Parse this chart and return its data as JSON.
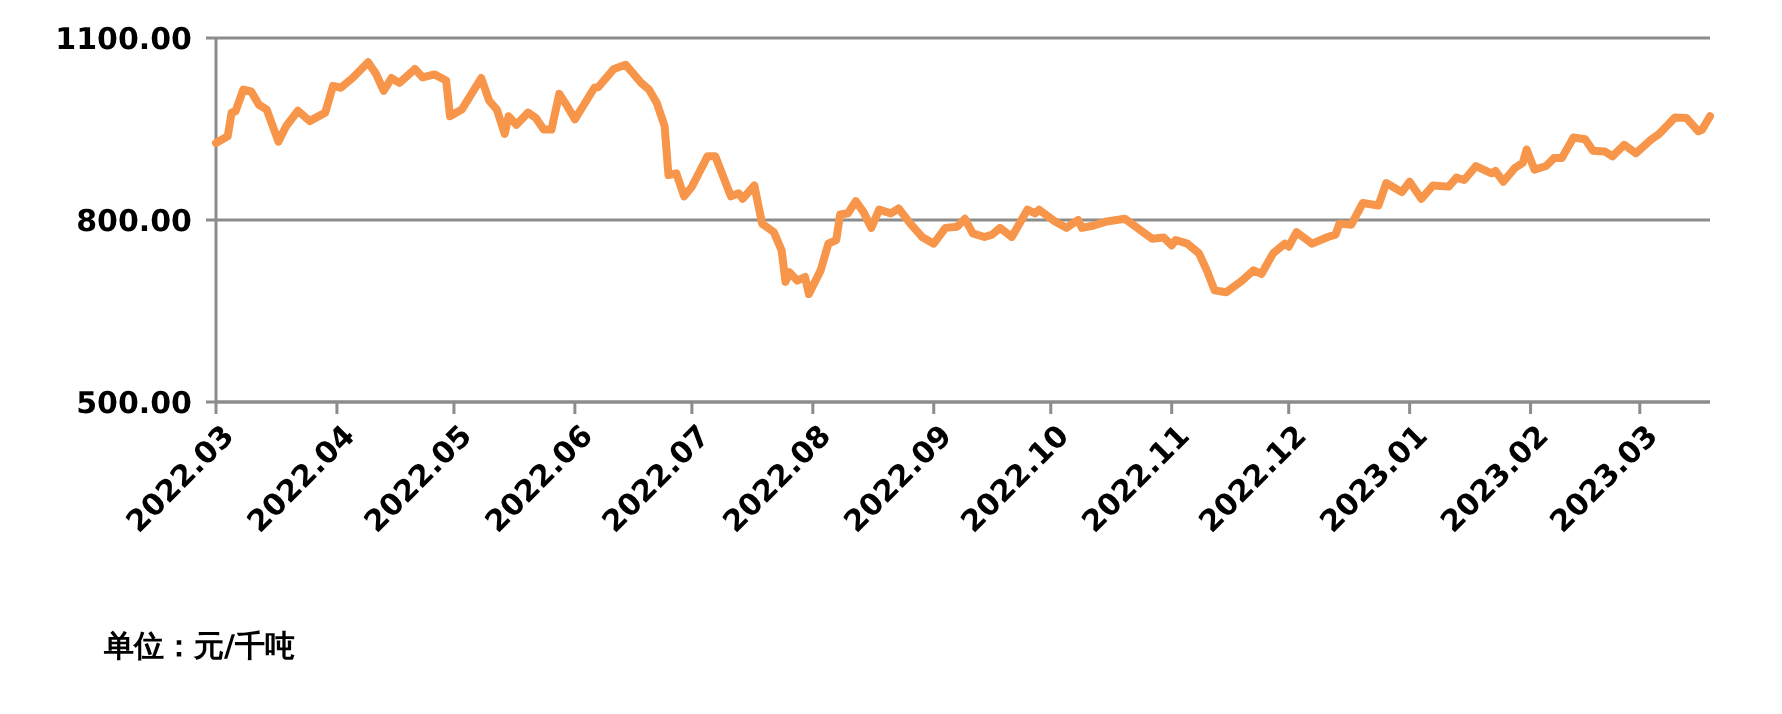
{
  "chart_data": {
    "type": "line",
    "x": [
      "2022-03-01",
      "2022-03-04",
      "2022-03-05",
      "2022-03-06",
      "2022-03-08",
      "2022-03-10",
      "2022-03-12",
      "2022-03-14",
      "2022-03-17",
      "2022-03-19",
      "2022-03-22",
      "2022-03-25",
      "2022-03-29",
      "2022-03-31",
      "2022-04-02",
      "2022-04-05",
      "2022-04-09",
      "2022-04-11",
      "2022-04-13",
      "2022-04-15",
      "2022-04-17",
      "2022-04-21",
      "2022-04-23",
      "2022-04-26",
      "2022-04-29",
      "2022-04-30",
      "2022-05-03",
      "2022-05-08",
      "2022-05-10",
      "2022-05-12",
      "2022-05-14",
      "2022-05-15",
      "2022-05-17",
      "2022-05-20",
      "2022-05-22",
      "2022-05-24",
      "2022-05-26",
      "2022-05-28",
      "2022-05-30",
      "2022-06-01",
      "2022-06-06",
      "2022-06-07",
      "2022-06-11",
      "2022-06-14",
      "2022-06-18",
      "2022-06-20",
      "2022-06-22",
      "2022-06-24",
      "2022-06-25",
      "2022-06-27",
      "2022-06-29",
      "2022-07-01",
      "2022-07-05",
      "2022-07-07",
      "2022-07-11",
      "2022-07-13",
      "2022-07-14",
      "2022-07-17",
      "2022-07-19",
      "2022-07-22",
      "2022-07-24",
      "2022-07-25",
      "2022-07-26",
      "2022-07-28",
      "2022-07-30",
      "2022-07-31",
      "2022-08-03",
      "2022-08-05",
      "2022-08-07",
      "2022-08-08",
      "2022-08-10",
      "2022-08-12",
      "2022-08-14",
      "2022-08-16",
      "2022-08-18",
      "2022-08-21",
      "2022-08-23",
      "2022-08-26",
      "2022-08-29",
      "2022-09-01",
      "2022-09-04",
      "2022-09-07",
      "2022-09-09",
      "2022-09-11",
      "2022-09-14",
      "2022-09-16",
      "2022-09-18",
      "2022-09-21",
      "2022-09-25",
      "2022-09-27",
      "2022-09-28",
      "2022-10-02",
      "2022-10-05",
      "2022-10-08",
      "2022-10-09",
      "2022-10-12",
      "2022-10-15",
      "2022-10-20",
      "2022-10-24",
      "2022-10-27",
      "2022-10-30",
      "2022-11-01",
      "2022-11-02",
      "2022-11-05",
      "2022-11-08",
      "2022-11-10",
      "2022-11-12",
      "2022-11-15",
      "2022-11-19",
      "2022-11-22",
      "2022-11-24",
      "2022-11-27",
      "2022-11-30",
      "2022-12-01",
      "2022-12-03",
      "2022-12-07",
      "2022-12-11",
      "2022-12-13",
      "2022-12-14",
      "2022-12-17",
      "2022-12-20",
      "2022-12-24",
      "2022-12-26",
      "2022-12-30",
      "2023-01-01",
      "2023-01-04",
      "2023-01-07",
      "2023-01-11",
      "2023-01-13",
      "2023-01-15",
      "2023-01-18",
      "2023-01-22",
      "2023-01-23",
      "2023-01-25",
      "2023-01-28",
      "2023-01-30",
      "2023-01-31",
      "2023-02-02",
      "2023-02-05",
      "2023-02-07",
      "2023-02-09",
      "2023-02-12",
      "2023-02-15",
      "2023-02-17",
      "2023-02-20",
      "2023-02-22",
      "2023-02-25",
      "2023-02-28",
      "2023-03-04",
      "2023-03-06",
      "2023-03-10",
      "2023-03-13",
      "2023-03-16",
      "2023-03-17",
      "2023-03-19"
    ],
    "series": [
      {
        "color": "#f7964a",
        "values": [
          927,
          938,
          977,
          979,
          1015,
          1012,
          990,
          982,
          929,
          955,
          980,
          963,
          977,
          1021,
          1018,
          1034,
          1060,
          1041,
          1013,
          1034,
          1026,
          1049,
          1035,
          1040,
          1030,
          971,
          982,
          1034,
          997,
          982,
          942,
          971,
          957,
          977,
          968,
          949,
          949,
          1008,
          988,
          966,
          1018,
          1019,
          1049,
          1056,
          1026,
          1015,
          993,
          955,
          874,
          877,
          839,
          855,
          905,
          905,
          839,
          844,
          835,
          857,
          794,
          780,
          750,
          698,
          714,
          700,
          706,
          678,
          717,
          761,
          767,
          809,
          811,
          831,
          813,
          787,
          817,
          811,
          819,
          794,
          772,
          761,
          787,
          789,
          802,
          778,
          772,
          776,
          787,
          772,
          817,
          811,
          817,
          798,
          787,
          800,
          787,
          791,
          797,
          802,
          783,
          769,
          771,
          758,
          767,
          761,
          745,
          717,
          684,
          681,
          700,
          717,
          711,
          745,
          761,
          756,
          780,
          761,
          772,
          776,
          794,
          792,
          828,
          824,
          861,
          846,
          863,
          835,
          857,
          855,
          870,
          866,
          889,
          877,
          881,
          863,
          886,
          894,
          916,
          883,
          889,
          902,
          902,
          936,
          933,
          914,
          913,
          905,
          924,
          910,
          933,
          942,
          969,
          968,
          946,
          949,
          971
        ]
      }
    ],
    "xlim": [
      "2022-03-01",
      "2023-03-19"
    ],
    "xticks": [
      {
        "value": "2022-03-01",
        "label": "2022.03"
      },
      {
        "value": "2022-04-01",
        "label": "2022.04"
      },
      {
        "value": "2022-05-01",
        "label": "2022.05"
      },
      {
        "value": "2022-06-01",
        "label": "2022.06"
      },
      {
        "value": "2022-07-01",
        "label": "2022.07"
      },
      {
        "value": "2022-08-01",
        "label": "2022.08"
      },
      {
        "value": "2022-09-01",
        "label": "2022.09"
      },
      {
        "value": "2022-10-01",
        "label": "2022.10"
      },
      {
        "value": "2022-11-01",
        "label": "2022.11"
      },
      {
        "value": "2022-12-01",
        "label": "2022.12"
      },
      {
        "value": "2023-01-01",
        "label": "2023.01"
      },
      {
        "value": "2023-02-01",
        "label": "2023.02"
      },
      {
        "value": "2023-03-01",
        "label": "2023.03"
      }
    ],
    "ylim": [
      500,
      1100
    ],
    "yticks": [
      {
        "value": 500,
        "label": "500.00"
      },
      {
        "value": 800,
        "label": "800.00"
      },
      {
        "value": 1100,
        "label": "1100.00"
      }
    ],
    "grid": "y",
    "annotations": [
      "单位：元/千吨"
    ]
  }
}
